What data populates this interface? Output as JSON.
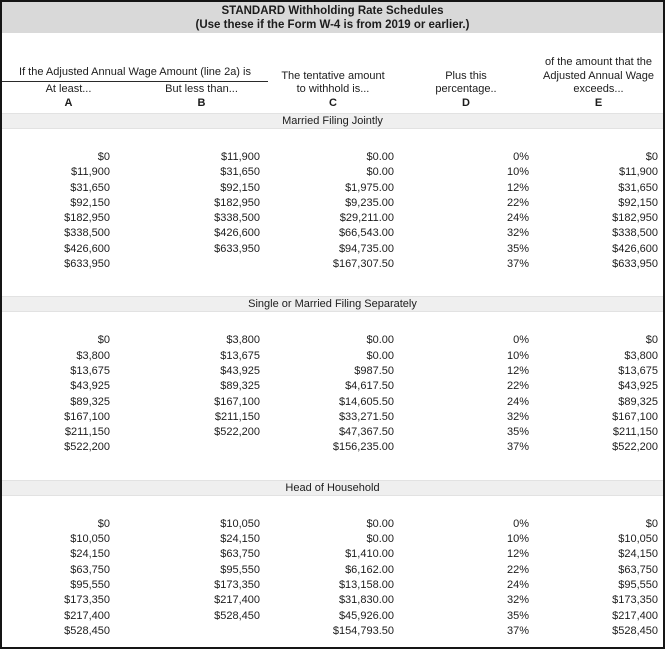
{
  "title": {
    "line1": "STANDARD Withholding Rate Schedules",
    "line2": "(Use these if the Form W-4 is from 2019 or earlier.)"
  },
  "header": {
    "group_ab": "If the Adjusted Annual Wage Amount (line 2a) is",
    "col_a": {
      "label": "At least...",
      "letter": "A"
    },
    "col_b": {
      "label": "But less than...",
      "letter": "B"
    },
    "col_c": {
      "label": "The tentative amount to withhold is...",
      "letter": "C"
    },
    "col_d": {
      "label": "Plus this percentage..",
      "letter": "D"
    },
    "col_e": {
      "label": "of the amount that the Adjusted Annual Wage exceeds...",
      "letter": "E"
    }
  },
  "sections": [
    {
      "name": "Married Filing Jointly",
      "rows": [
        [
          "$0",
          "$11,900",
          "$0.00",
          "0%",
          "$0"
        ],
        [
          "$11,900",
          "$31,650",
          "$0.00",
          "10%",
          "$11,900"
        ],
        [
          "$31,650",
          "$92,150",
          "$1,975.00",
          "12%",
          "$31,650"
        ],
        [
          "$92,150",
          "$182,950",
          "$9,235.00",
          "22%",
          "$92,150"
        ],
        [
          "$182,950",
          "$338,500",
          "$29,211.00",
          "24%",
          "$182,950"
        ],
        [
          "$338,500",
          "$426,600",
          "$66,543.00",
          "32%",
          "$338,500"
        ],
        [
          "$426,600",
          "$633,950",
          "$94,735.00",
          "35%",
          "$426,600"
        ],
        [
          "$633,950",
          "",
          "$167,307.50",
          "37%",
          "$633,950"
        ]
      ]
    },
    {
      "name": "Single or Married Filing Separately",
      "rows": [
        [
          "$0",
          "$3,800",
          "$0.00",
          "0%",
          "$0"
        ],
        [
          "$3,800",
          "$13,675",
          "$0.00",
          "10%",
          "$3,800"
        ],
        [
          "$13,675",
          "$43,925",
          "$987.50",
          "12%",
          "$13,675"
        ],
        [
          "$43,925",
          "$89,325",
          "$4,617.50",
          "22%",
          "$43,925"
        ],
        [
          "$89,325",
          "$167,100",
          "$14,605.50",
          "24%",
          "$89,325"
        ],
        [
          "$167,100",
          "$211,150",
          "$33,271.50",
          "32%",
          "$167,100"
        ],
        [
          "$211,150",
          "$522,200",
          "$47,367.50",
          "35%",
          "$211,150"
        ],
        [
          "$522,200",
          "",
          "$156,235.00",
          "37%",
          "$522,200"
        ]
      ]
    },
    {
      "name": "Head of Household",
      "rows": [
        [
          "$0",
          "$10,050",
          "$0.00",
          "0%",
          "$0"
        ],
        [
          "$10,050",
          "$24,150",
          "$0.00",
          "10%",
          "$10,050"
        ],
        [
          "$24,150",
          "$63,750",
          "$1,410.00",
          "12%",
          "$24,150"
        ],
        [
          "$63,750",
          "$95,550",
          "$6,162.00",
          "22%",
          "$63,750"
        ],
        [
          "$95,550",
          "$173,350",
          "$13,158.00",
          "24%",
          "$95,550"
        ],
        [
          "$173,350",
          "$217,400",
          "$31,830.00",
          "32%",
          "$173,350"
        ],
        [
          "$217,400",
          "$528,450",
          "$45,926.00",
          "35%",
          "$217,400"
        ],
        [
          "$528,450",
          "",
          "$154,793.50",
          "37%",
          "$528,450"
        ]
      ]
    }
  ],
  "colors": {
    "title_band_bg": "#d9d9d9",
    "section_band_bg": "#efefef",
    "border": "#151515",
    "text": "#1c1c1c"
  }
}
